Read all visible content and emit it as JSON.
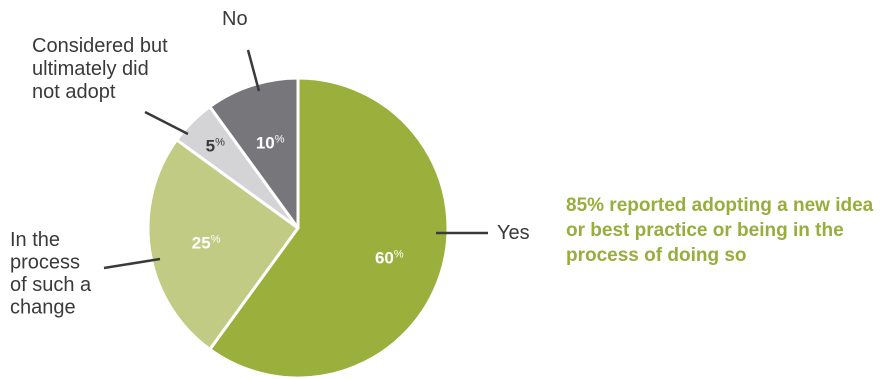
{
  "chart_data": {
    "type": "pie",
    "unit": "%",
    "slices": [
      {
        "key": "yes",
        "label": "Yes",
        "value": 60,
        "color": "#9aaf3c",
        "value_color": "#ffffff"
      },
      {
        "key": "in_process",
        "label": "In the process of such a change",
        "value": 25,
        "color": "#c2cb84",
        "value_color": "#ffffff"
      },
      {
        "key": "considered",
        "label": "Considered but ultimately did not adopt",
        "value": 5,
        "color": "#d4d4d6",
        "value_color": "#3a3a3a"
      },
      {
        "key": "no",
        "label": "No",
        "value": 10,
        "color": "#77767b",
        "value_color": "#ffffff"
      }
    ],
    "annotation": "85% reported adopting a new idea or best practice or being in the process of doing so",
    "annotation_color": "#97ad3c"
  }
}
